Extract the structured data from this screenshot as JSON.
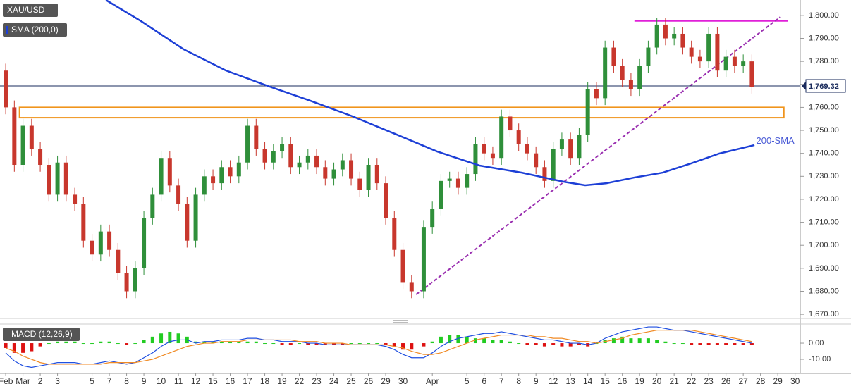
{
  "chart_data": [
    {
      "type": "candlestick",
      "title": "XAU/USD",
      "x": [
        0,
        0.5,
        1,
        1.5,
        2,
        2.5,
        3,
        3.5,
        4,
        4.5,
        5,
        5.5,
        6,
        6.5,
        7,
        7.5,
        8,
        8.5,
        9,
        9.5,
        10,
        10.5,
        11,
        11.5,
        12,
        12.5,
        13,
        13.5,
        14,
        14.5,
        15,
        15.5,
        16,
        16.5,
        17,
        17.5,
        18,
        18.5,
        19,
        19.5,
        20,
        20.5,
        21,
        21.5,
        22,
        22.5,
        23,
        23.5,
        24.2,
        24.7,
        25.2,
        25.7,
        26.2,
        26.7,
        27.2,
        27.7,
        28.2,
        28.7,
        29.2,
        29.7,
        30.2,
        30.7,
        31.2,
        31.7,
        32.2,
        32.7,
        33.2,
        33.7,
        34.2,
        34.7,
        35.2,
        35.7,
        36.2,
        36.7,
        37.2,
        37.7,
        38.2,
        38.7,
        39.2,
        39.7,
        40.2,
        40.7,
        41.2,
        41.7,
        42.2,
        42.7,
        43.2
      ],
      "open": [
        1776,
        1760,
        1735,
        1752,
        1742,
        1735,
        1722,
        1736,
        1722,
        1718,
        1702,
        1696,
        1706,
        1698,
        1688,
        1680,
        1690,
        1712,
        1722,
        1738,
        1726,
        1718,
        1702,
        1722,
        1730,
        1727,
        1734,
        1730,
        1736,
        1752,
        1742,
        1736,
        1741,
        1744,
        1734,
        1736,
        1739,
        1734,
        1729,
        1733,
        1737,
        1729,
        1724,
        1735,
        1727,
        1712,
        1698,
        1684,
        1680,
        1708,
        1716,
        1728,
        1729,
        1725,
        1731,
        1744,
        1740,
        1738,
        1756,
        1750,
        1744,
        1740,
        1734,
        1728,
        1742,
        1746,
        1738,
        1748,
        1768,
        1764,
        1786,
        1778,
        1772,
        1768,
        1778,
        1786,
        1796,
        1790,
        1792,
        1786,
        1782,
        1780,
        1792,
        1776,
        1782,
        1778,
        1780
      ],
      "high": [
        1779,
        1763,
        1755,
        1755,
        1745,
        1738,
        1739,
        1739,
        1725,
        1721,
        1705,
        1709,
        1709,
        1701,
        1691,
        1693,
        1715,
        1725,
        1741,
        1741,
        1729,
        1721,
        1725,
        1733,
        1733,
        1737,
        1737,
        1739,
        1755,
        1755,
        1745,
        1744,
        1747,
        1747,
        1739,
        1742,
        1742,
        1737,
        1736,
        1740,
        1740,
        1732,
        1738,
        1738,
        1730,
        1715,
        1701,
        1687,
        1711,
        1719,
        1731,
        1732,
        1732,
        1734,
        1747,
        1747,
        1743,
        1759,
        1759,
        1753,
        1747,
        1743,
        1737,
        1745,
        1749,
        1749,
        1751,
        1771,
        1771,
        1789,
        1789,
        1781,
        1775,
        1781,
        1789,
        1799,
        1799,
        1795,
        1795,
        1789,
        1785,
        1795,
        1795,
        1785,
        1785,
        1783,
        1783
      ],
      "low": [
        1757,
        1732,
        1732,
        1739,
        1732,
        1719,
        1719,
        1719,
        1715,
        1699,
        1693,
        1693,
        1695,
        1685,
        1677,
        1677,
        1687,
        1709,
        1719,
        1723,
        1715,
        1699,
        1699,
        1719,
        1724,
        1724,
        1727,
        1727,
        1733,
        1739,
        1733,
        1733,
        1738,
        1731,
        1731,
        1733,
        1731,
        1726,
        1726,
        1730,
        1726,
        1721,
        1721,
        1724,
        1709,
        1695,
        1681,
        1677,
        1677,
        1705,
        1713,
        1725,
        1722,
        1722,
        1728,
        1737,
        1735,
        1735,
        1747,
        1741,
        1737,
        1731,
        1725,
        1725,
        1739,
        1735,
        1735,
        1745,
        1761,
        1761,
        1775,
        1769,
        1765,
        1765,
        1775,
        1783,
        1787,
        1787,
        1783,
        1779,
        1777,
        1777,
        1773,
        1773,
        1775,
        1775,
        1766
      ],
      "close": [
        1760,
        1735,
        1752,
        1742,
        1735,
        1722,
        1736,
        1722,
        1718,
        1702,
        1696,
        1706,
        1698,
        1688,
        1680,
        1690,
        1712,
        1722,
        1738,
        1726,
        1718,
        1702,
        1722,
        1730,
        1727,
        1734,
        1730,
        1736,
        1752,
        1742,
        1736,
        1741,
        1744,
        1734,
        1736,
        1739,
        1734,
        1729,
        1733,
        1737,
        1729,
        1724,
        1735,
        1727,
        1712,
        1698,
        1684,
        1680,
        1708,
        1716,
        1728,
        1729,
        1725,
        1731,
        1744,
        1740,
        1738,
        1756,
        1750,
        1744,
        1740,
        1734,
        1728,
        1742,
        1746,
        1738,
        1748,
        1768,
        1764,
        1786,
        1778,
        1772,
        1768,
        1778,
        1786,
        1796,
        1790,
        1792,
        1786,
        1782,
        1780,
        1792,
        1776,
        1782,
        1778,
        1780,
        1769
      ],
      "up_color": "#2f8f3a",
      "down_color": "#c8372d",
      "series": [
        {
          "name": "SMA (200,0)",
          "color": "#1d3fd6",
          "x": [
            5.8,
            7.84,
            10.29,
            12.73,
            15.18,
            17.63,
            20.08,
            22.53,
            24.98,
            27.43,
            29.88,
            32.33,
            33.55,
            34.78,
            36.41,
            38.04,
            39.67,
            41.31,
            43.35
          ],
          "values": [
            1806.7,
            1797.5,
            1785.3,
            1776.1,
            1769.3,
            1762.9,
            1756.1,
            1748.5,
            1740.8,
            1734.7,
            1731.6,
            1727.6,
            1726.1,
            1727.0,
            1729.5,
            1731.6,
            1735.6,
            1739.9,
            1743.6
          ]
        }
      ],
      "annotations": [
        {
          "text": "200-SMA",
          "x": 43.45,
          "y": 1745.3,
          "color": "#4a5bd6"
        }
      ],
      "last_price": {
        "value": 1769.32,
        "label": "1,769.32",
        "color": "#1a2b5c"
      },
      "shapes": [
        {
          "kind": "rect",
          "color": "#f0941c",
          "x": [
            0.8,
            45.05
          ],
          "y": [
            1755.5,
            1760
          ]
        },
        {
          "kind": "line",
          "color": "#e020d8",
          "x": [
            36.4,
            45.3
          ],
          "y": [
            1797.6,
            1797.6
          ]
        },
        {
          "kind": "dashed",
          "color": "#9a2fb0",
          "x": [
            23.76,
            44.86
          ],
          "y": [
            1678.6,
            1799.4
          ]
        }
      ],
      "xlim": [
        -0.33,
        46.0
      ],
      "ylim": [
        1668.2,
        1806.7
      ],
      "yticks": [
        {
          "value": 1670,
          "label": "1,670.00"
        },
        {
          "value": 1680,
          "label": "1,680.00"
        },
        {
          "value": 1690,
          "label": "1,690.00"
        },
        {
          "value": 1700,
          "label": "1,700.00"
        },
        {
          "value": 1710,
          "label": "1,710.00"
        },
        {
          "value": 1720,
          "label": "1,720.00"
        },
        {
          "value": 1730,
          "label": "1,730.00"
        },
        {
          "value": 1740,
          "label": "1,740.00"
        },
        {
          "value": 1750,
          "label": "1,750.00"
        },
        {
          "value": 1760,
          "label": "1,760.00"
        },
        {
          "value": 1770,
          "label": "1,770.00"
        },
        {
          "value": 1780,
          "label": "1,780.00"
        },
        {
          "value": 1790,
          "label": "1,790.00"
        },
        {
          "value": 1800,
          "label": "1,800.00"
        }
      ],
      "xticks": [
        {
          "value": 0,
          "label": "Feb"
        },
        {
          "value": 1,
          "label": "Mar"
        },
        {
          "value": 2,
          "label": "2"
        },
        {
          "value": 3,
          "label": "3"
        },
        {
          "value": 5,
          "label": "5"
        },
        {
          "value": 6,
          "label": "7"
        },
        {
          "value": 7,
          "label": "8"
        },
        {
          "value": 8,
          "label": "9"
        },
        {
          "value": 9,
          "label": "10"
        },
        {
          "value": 10,
          "label": "11"
        },
        {
          "value": 11,
          "label": "12"
        },
        {
          "value": 12,
          "label": "15"
        },
        {
          "value": 13,
          "label": "16"
        },
        {
          "value": 14,
          "label": "17"
        },
        {
          "value": 15,
          "label": "18"
        },
        {
          "value": 16,
          "label": "19"
        },
        {
          "value": 17,
          "label": "22"
        },
        {
          "value": 18,
          "label": "23"
        },
        {
          "value": 19,
          "label": "24"
        },
        {
          "value": 20,
          "label": "25"
        },
        {
          "value": 21,
          "label": "26"
        },
        {
          "value": 22,
          "label": "29"
        },
        {
          "value": 23,
          "label": "30"
        },
        {
          "value": 24.7,
          "label": "Apr"
        },
        {
          "value": 26.7,
          "label": "5"
        },
        {
          "value": 27.7,
          "label": "6"
        },
        {
          "value": 28.7,
          "label": "7"
        },
        {
          "value": 29.7,
          "label": "8"
        },
        {
          "value": 30.7,
          "label": "9"
        },
        {
          "value": 31.7,
          "label": "12"
        },
        {
          "value": 32.7,
          "label": "13"
        },
        {
          "value": 33.7,
          "label": "14"
        },
        {
          "value": 34.7,
          "label": "15"
        },
        {
          "value": 35.7,
          "label": "16"
        },
        {
          "value": 36.7,
          "label": "19"
        },
        {
          "value": 37.7,
          "label": "20"
        },
        {
          "value": 38.7,
          "label": "21"
        },
        {
          "value": 39.7,
          "label": "22"
        },
        {
          "value": 40.7,
          "label": "23"
        },
        {
          "value": 41.7,
          "label": "26"
        },
        {
          "value": 42.7,
          "label": "27"
        },
        {
          "value": 43.7,
          "label": "28"
        },
        {
          "value": 44.7,
          "label": "29"
        },
        {
          "value": 45.7,
          "label": "30"
        }
      ]
    },
    {
      "type": "macd",
      "title": "MACD (12,26,9)",
      "ylim": [
        -18.7,
        10.9
      ],
      "yticks": [
        {
          "value": 0,
          "label": "0.00"
        },
        {
          "value": -10,
          "label": "-10.00"
        }
      ],
      "positive_color": "#22cc22",
      "negative_color": "#dd1111",
      "histogram": [
        -3,
        -6,
        -6,
        -5,
        -2,
        0,
        1,
        1,
        1,
        0,
        0,
        1,
        1,
        0,
        -1,
        0,
        2,
        4,
        6,
        7,
        6,
        4,
        1,
        1,
        1,
        1,
        1,
        1,
        1,
        1,
        0,
        0,
        -1,
        -1,
        0,
        -1,
        -1,
        -1,
        -1,
        -1,
        0,
        0,
        0,
        0,
        -1,
        -2,
        -4,
        -4,
        -2,
        1,
        4,
        5,
        5,
        4,
        3,
        3,
        2,
        2,
        1,
        0,
        -1,
        -1,
        -2,
        -1,
        -2,
        -2,
        -1,
        -2,
        0,
        2,
        3,
        4,
        3,
        3,
        3,
        2,
        1,
        0,
        0,
        -1,
        -1,
        -1,
        -1,
        -1,
        -1,
        -1,
        -1
      ],
      "series": [
        {
          "color": "#1f4fe0",
          "values": [
            -6,
            -11,
            -14,
            -15,
            -14,
            -13,
            -12,
            -12,
            -12,
            -13,
            -13,
            -12,
            -11,
            -12,
            -13,
            -12,
            -9,
            -6,
            -2,
            1,
            2,
            2,
            0,
            1,
            1,
            2,
            2,
            2,
            3,
            3,
            2,
            2,
            1,
            1,
            1,
            0,
            0,
            -1,
            -1,
            -1,
            -1,
            -1,
            -1,
            -1,
            -2,
            -4,
            -7,
            -9,
            -9,
            -6,
            -2,
            1,
            3,
            4,
            5,
            6,
            6,
            7,
            6,
            5,
            4,
            3,
            2,
            2,
            1,
            0,
            0,
            -1,
            0,
            3,
            5,
            7,
            8,
            9,
            10,
            10,
            9,
            8,
            8,
            7,
            6,
            5,
            4,
            3,
            2,
            1,
            0
          ]
        },
        {
          "color": "#f08a24",
          "values": [
            -3,
            -5,
            -8,
            -10,
            -12,
            -13,
            -13,
            -13,
            -13,
            -13,
            -13,
            -13,
            -12,
            -12,
            -12,
            -12,
            -11,
            -10,
            -8,
            -6,
            -4,
            -2,
            -1,
            0,
            0,
            1,
            1,
            1,
            2,
            2,
            2,
            2,
            2,
            2,
            1,
            1,
            1,
            0,
            0,
            0,
            -1,
            -1,
            -1,
            -1,
            -1,
            -2,
            -3,
            -5,
            -7,
            -7,
            -6,
            -4,
            -2,
            0,
            2,
            3,
            4,
            5,
            5,
            5,
            5,
            4,
            4,
            3,
            3,
            2,
            1,
            1,
            0,
            1,
            2,
            3,
            5,
            6,
            7,
            8,
            8,
            8,
            8,
            8,
            7,
            6,
            5,
            4,
            3,
            2,
            1
          ]
        }
      ]
    }
  ]
}
